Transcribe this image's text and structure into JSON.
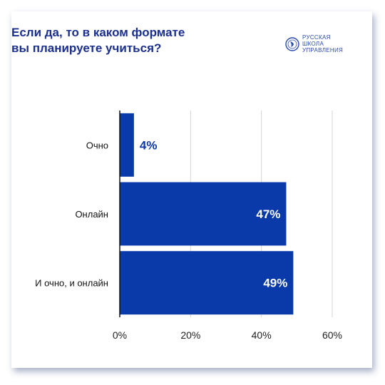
{
  "title_lines": [
    "Если да, то в каком формате",
    "вы планируете учиться?"
  ],
  "logo": {
    "icon": "globe-seal-icon",
    "lines": [
      "РУССКАЯ",
      "ШКОЛА",
      "УПРАВЛЕНИЯ"
    ]
  },
  "colors": {
    "bar": "#0a3aaa",
    "title": "#1a2f8f",
    "value_inside": "#ffffff",
    "value_outside": "#0a3aaa",
    "grid": "#d4d4d4",
    "axis": "#111111"
  },
  "chart_data": {
    "type": "bar",
    "orientation": "horizontal",
    "categories": [
      "Очно",
      "Онлайн",
      "И очно, и онлайн"
    ],
    "values": [
      4,
      47,
      49
    ],
    "value_labels": [
      "4%",
      "47%",
      "49%"
    ],
    "xlim": [
      0,
      60
    ],
    "xticks": [
      0,
      20,
      40,
      60
    ],
    "xtick_labels": [
      "0%",
      "20%",
      "40%",
      "60%"
    ],
    "grid": true,
    "legend": "none",
    "title": "Если да, то в каком формате вы планируете учиться?"
  }
}
